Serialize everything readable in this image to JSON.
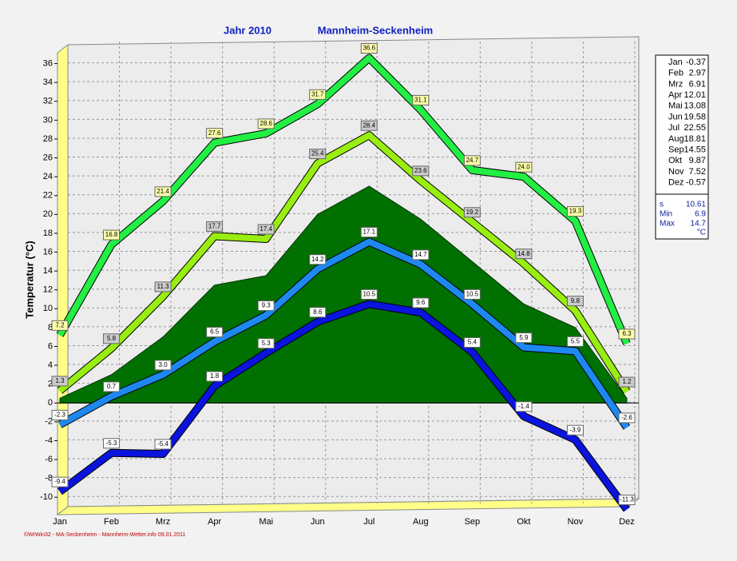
{
  "chart_data": {
    "type": "line",
    "title": "Jahr  2010",
    "subtitle": "Mannheim-Seckenheim",
    "y_label": "Temperatur  (°C)",
    "footer": "©WrWin32 - MA-Seckenheim - Mannheim-Wetter.info  09.01.2011",
    "categories": [
      "Jan",
      "Feb",
      "Mrz",
      "Apr",
      "Mai",
      "Jun",
      "Jul",
      "Aug",
      "Sep",
      "Okt",
      "Nov",
      "Dez"
    ],
    "ylim": [
      -11,
      38
    ],
    "yticks": [
      -10,
      -8,
      -6,
      -4,
      -2,
      0,
      2,
      4,
      6,
      8,
      10,
      12,
      14,
      16,
      18,
      20,
      22,
      24,
      26,
      28,
      30,
      32,
      34,
      36
    ],
    "grid": true,
    "area": {
      "color": "#007000",
      "values": [
        0.5,
        3,
        7,
        12.5,
        13.5,
        20,
        23,
        19.5,
        15,
        10.5,
        8,
        0.5
      ]
    },
    "series": [
      {
        "color": "#22ee44",
        "values": [
          7.2,
          16.8,
          21.4,
          27.6,
          28.6,
          31.7,
          36.6,
          31.1,
          24.7,
          24.0,
          19.3,
          6.3
        ],
        "value_labels": [
          "7.2",
          "16.8",
          "21.4",
          "27.6",
          "28.6",
          "31.7",
          "36.6",
          "31.1",
          "24.7",
          "24.0",
          "19.3",
          "6.3"
        ]
      },
      {
        "color": "#99ee11",
        "values": [
          1.3,
          5.8,
          11.3,
          17.7,
          17.4,
          25.4,
          28.4,
          23.6,
          19.2,
          14.8,
          9.8,
          1.2
        ],
        "value_labels": [
          "1.3",
          "5.8",
          "11.3",
          "17.7",
          "17.4",
          "25.4",
          "28.4",
          "23.6",
          "19.2",
          "14.8",
          "9.8",
          "1.2"
        ]
      },
      {
        "color": "#1e88f0",
        "values": [
          -2.3,
          0.7,
          3.0,
          6.5,
          9.3,
          14.2,
          17.1,
          14.7,
          10.5,
          5.9,
          5.5,
          -2.6
        ],
        "value_labels": [
          "-2.3",
          "0.7",
          "3.0",
          "6.5",
          "9.3",
          "14.2",
          "17.1",
          "14.7",
          "10.5",
          "5.9",
          "5.5",
          "-2.6"
        ]
      },
      {
        "color": "#0a14dc",
        "values": [
          -9.4,
          -5.3,
          -5.4,
          1.8,
          5.3,
          8.6,
          10.5,
          9.6,
          5.4,
          -1.4,
          -3.9,
          -11.3
        ],
        "value_labels": [
          "-9.4",
          "-5.3",
          "-5.4",
          "1.8",
          "5.3",
          "8.6",
          "10.5",
          "9.6",
          "5.4",
          "-1.4",
          "-3.9",
          "-11.3"
        ]
      }
    ],
    "side_table": {
      "rows": [
        [
          "Jan",
          -0.37
        ],
        [
          "Feb",
          2.97
        ],
        [
          "Mrz",
          6.91
        ],
        [
          "Apr",
          12.01
        ],
        [
          "Mai",
          13.08
        ],
        [
          "Jun",
          19.58
        ],
        [
          "Jul",
          22.55
        ],
        [
          "Aug",
          18.81
        ],
        [
          "Sep",
          14.55
        ],
        [
          "Okt",
          9.87
        ],
        [
          "Nov",
          7.52
        ],
        [
          "Dez",
          -0.57
        ]
      ],
      "stats": [
        [
          "s",
          10.61
        ],
        [
          "Min",
          6.9
        ],
        [
          "Max",
          14.7
        ]
      ],
      "unit": "°C"
    }
  }
}
